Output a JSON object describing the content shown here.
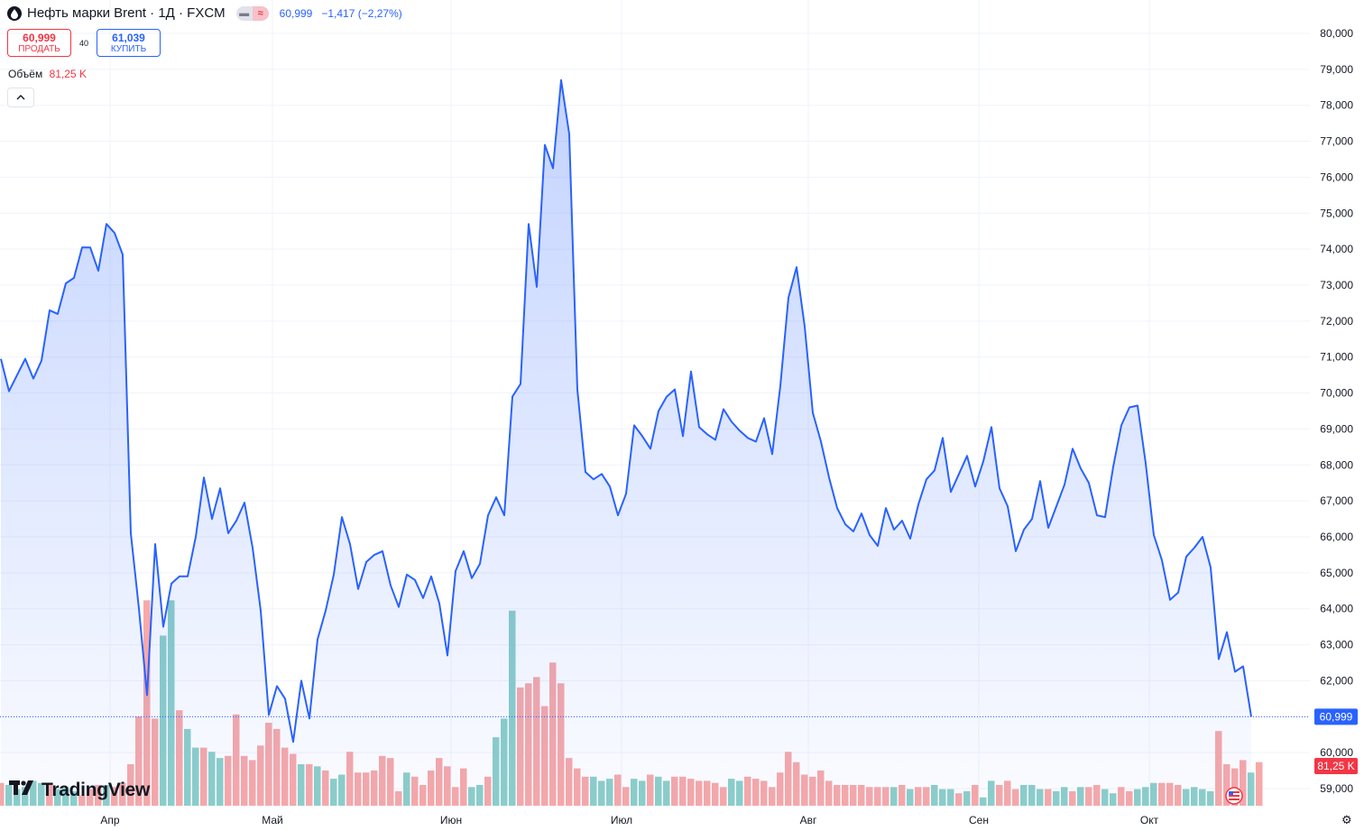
{
  "header": {
    "symbol_title": "Нефть марки Brent · 1Д · FXCM",
    "last": "60,999",
    "change": "−1,417 (−2,27%)",
    "pill_icon_1": "minus-icon",
    "pill_icon_2": "≈"
  },
  "trade": {
    "sell_price": "60,999",
    "sell_label": "ПРОДАТЬ",
    "spread": "40",
    "buy_price": "61,039",
    "buy_label": "КУПИТЬ"
  },
  "volume_legend": {
    "label": "Объём",
    "value": "81,25 K"
  },
  "watermark": {
    "text": "TradingView"
  },
  "colors": {
    "line": "#2962ff",
    "up_vol": "#8dcfc9",
    "down_vol": "#f7a9a9",
    "sell": "#f23645",
    "buy": "#2962ff"
  },
  "chart_data": {
    "type": "line",
    "title": "Нефть марки Brent · 1Д · FXCM",
    "ylim": [
      58.3,
      80.5
    ],
    "y_ticks": [
      "80,000",
      "79,000",
      "78,000",
      "77,000",
      "76,000",
      "75,000",
      "74,000",
      "73,000",
      "72,000",
      "71,000",
      "70,000",
      "69,000",
      "68,000",
      "67,000",
      "66,000",
      "65,000",
      "64,000",
      "63,000",
      "62,000",
      "61,000",
      "60,000",
      "59,000"
    ],
    "x_labels": [
      "Апр",
      "Май",
      "Июн",
      "Июл",
      "Авг",
      "Сен",
      "Окт"
    ],
    "x_label_index": [
      13,
      33,
      55,
      76,
      99,
      120,
      141
    ],
    "last_price_label": "60,999",
    "last_volume_label": "81,25 K",
    "series": [
      {
        "values": [
          70.95,
          70.05,
          70.5,
          70.95,
          70.4,
          70.9,
          72.3,
          72.2,
          73.05,
          73.2,
          74.05,
          74.05,
          73.4,
          74.7,
          74.45,
          73.85,
          66.1,
          64.0,
          61.6,
          65.8,
          63.5,
          64.7,
          64.9,
          64.9,
          66.0,
          67.65,
          66.5,
          67.35,
          66.1,
          66.45,
          66.95,
          65.7,
          63.95,
          61.05,
          61.85,
          61.5,
          60.3,
          62.0,
          60.95,
          63.15,
          63.95,
          64.95,
          66.55,
          65.8,
          64.55,
          65.3,
          65.5,
          65.6,
          64.65,
          64.05,
          64.95,
          64.8,
          64.3,
          64.9,
          64.15,
          62.7,
          65.05,
          65.6,
          64.85,
          65.25,
          66.6,
          67.1,
          66.6,
          69.9,
          70.25,
          74.7,
          72.95,
          76.9,
          76.25,
          78.7,
          77.2,
          70.1,
          67.8,
          67.6,
          67.75,
          67.4,
          66.6,
          67.2,
          69.1,
          68.8,
          68.45,
          69.5,
          69.9,
          70.1,
          68.8,
          70.6,
          69.05,
          68.85,
          68.7,
          69.55,
          69.2,
          68.95,
          68.75,
          68.65,
          69.3,
          68.3,
          70.2,
          72.65,
          73.5,
          71.85,
          69.45,
          68.65,
          67.65,
          66.8,
          66.35,
          66.15,
          66.65,
          66.05,
          65.75,
          66.8,
          66.2,
          66.45,
          65.95,
          66.9,
          67.6,
          67.85,
          68.75,
          67.25,
          67.75,
          68.25,
          67.4,
          68.1,
          69.05,
          67.35,
          66.85,
          65.6,
          66.2,
          66.5,
          67.55,
          66.25,
          66.85,
          67.45,
          68.45,
          67.9,
          67.5,
          66.6,
          66.55,
          67.95,
          69.1,
          69.6,
          69.65,
          68.05,
          66.05,
          65.35,
          64.25,
          64.45,
          65.45,
          65.7,
          66.0,
          65.15,
          62.6,
          63.35,
          62.25,
          62.4,
          60.999
        ]
      },
      {
        "name": "Объём",
        "volume": [
          [
            11,
            1
          ],
          [
            10,
            0
          ],
          [
            8,
            0
          ],
          [
            9,
            0
          ],
          [
            12,
            0
          ],
          [
            11,
            0
          ],
          [
            11,
            1
          ],
          [
            8,
            0
          ],
          [
            9,
            0
          ],
          [
            7,
            0
          ],
          [
            5,
            1
          ],
          [
            8,
            1
          ],
          [
            10,
            1
          ],
          [
            10,
            0
          ],
          [
            9,
            1
          ],
          [
            11,
            1
          ],
          [
            20,
            1
          ],
          [
            43,
            1
          ],
          [
            99,
            1
          ],
          [
            42,
            1
          ],
          [
            82,
            0
          ],
          [
            99,
            0
          ],
          [
            46,
            1
          ],
          [
            37,
            0
          ],
          [
            28,
            0
          ],
          [
            28,
            1
          ],
          [
            26,
            0
          ],
          [
            23,
            0
          ],
          [
            24,
            1
          ],
          [
            44,
            1
          ],
          [
            24,
            1
          ],
          [
            22,
            1
          ],
          [
            29,
            1
          ],
          [
            40,
            1
          ],
          [
            37,
            1
          ],
          [
            28,
            1
          ],
          [
            25,
            1
          ],
          [
            20,
            0
          ],
          [
            20,
            1
          ],
          [
            19,
            0
          ],
          [
            17,
            1
          ],
          [
            13,
            0
          ],
          [
            15,
            0
          ],
          [
            26,
            1
          ],
          [
            16,
            1
          ],
          [
            16,
            1
          ],
          [
            17,
            1
          ],
          [
            24,
            1
          ],
          [
            23,
            1
          ],
          [
            7,
            1
          ],
          [
            16,
            0
          ],
          [
            14,
            1
          ],
          [
            10,
            1
          ],
          [
            17,
            1
          ],
          [
            23,
            1
          ],
          [
            19,
            1
          ],
          [
            9,
            1
          ],
          [
            18,
            1
          ],
          [
            9,
            0
          ],
          [
            10,
            0
          ],
          [
            14,
            1
          ],
          [
            33,
            0
          ],
          [
            42,
            0
          ],
          [
            94,
            0
          ],
          [
            57,
            1
          ],
          [
            59,
            1
          ],
          [
            62,
            1
          ],
          [
            48,
            1
          ],
          [
            69,
            1
          ],
          [
            59,
            1
          ],
          [
            23,
            1
          ],
          [
            18,
            1
          ],
          [
            14,
            1
          ],
          [
            14,
            0
          ],
          [
            12,
            0
          ],
          [
            13,
            0
          ],
          [
            15,
            1
          ],
          [
            9,
            1
          ],
          [
            13,
            0
          ],
          [
            12,
            0
          ],
          [
            15,
            1
          ],
          [
            14,
            0
          ],
          [
            12,
            0
          ],
          [
            14,
            1
          ],
          [
            14,
            1
          ],
          [
            13,
            1
          ],
          [
            12,
            1
          ],
          [
            12,
            1
          ],
          [
            11,
            1
          ],
          [
            9,
            1
          ],
          [
            13,
            0
          ],
          [
            12,
            0
          ],
          [
            14,
            1
          ],
          [
            13,
            1
          ],
          [
            12,
            1
          ],
          [
            9,
            1
          ],
          [
            16,
            1
          ],
          [
            26,
            1
          ],
          [
            21,
            1
          ],
          [
            15,
            1
          ],
          [
            14,
            1
          ],
          [
            17,
            1
          ],
          [
            12,
            1
          ],
          [
            10,
            1
          ],
          [
            10,
            1
          ],
          [
            10,
            1
          ],
          [
            10,
            1
          ],
          [
            9,
            1
          ],
          [
            9,
            1
          ],
          [
            9,
            1
          ],
          [
            9,
            0
          ],
          [
            10,
            1
          ],
          [
            8,
            0
          ],
          [
            9,
            1
          ],
          [
            9,
            1
          ],
          [
            10,
            0
          ],
          [
            8,
            0
          ],
          [
            8,
            0
          ],
          [
            6,
            1
          ],
          [
            7,
            0
          ],
          [
            10,
            1
          ],
          [
            4,
            0
          ],
          [
            12,
            0
          ],
          [
            10,
            1
          ],
          [
            12,
            1
          ],
          [
            8,
            1
          ],
          [
            10,
            0
          ],
          [
            10,
            0
          ],
          [
            8,
            0
          ],
          [
            8,
            1
          ],
          [
            7,
            0
          ],
          [
            9,
            0
          ],
          [
            7,
            1
          ],
          [
            9,
            0
          ],
          [
            9,
            1
          ],
          [
            10,
            1
          ],
          [
            8,
            0
          ],
          [
            6,
            0
          ],
          [
            9,
            1
          ],
          [
            7,
            1
          ],
          [
            8,
            0
          ],
          [
            9,
            0
          ],
          [
            11,
            0
          ],
          [
            11,
            1
          ],
          [
            11,
            1
          ],
          [
            10,
            1
          ],
          [
            8,
            0
          ],
          [
            9,
            0
          ],
          [
            8,
            0
          ],
          [
            7,
            0
          ],
          [
            36,
            1
          ],
          [
            20,
            1
          ],
          [
            18,
            1
          ],
          [
            22,
            1
          ],
          [
            16,
            0
          ],
          [
            21,
            1
          ]
        ]
      }
    ]
  }
}
